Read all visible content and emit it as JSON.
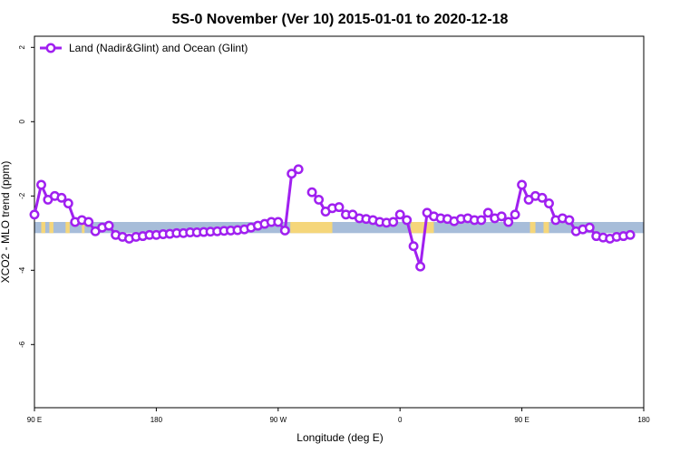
{
  "chart_data": {
    "type": "line",
    "title": "5S-0 November (Ver 10)   2015-01-01 to 2020-12-18",
    "xlabel": "Longitude (deg E)",
    "ylabel": "XCO2 - MLO trend (ppm)",
    "x_ticks": [
      "90 E",
      "180",
      "90 W",
      "0",
      "90 E",
      "180"
    ],
    "y_ticks": [
      "2",
      "0",
      "-2",
      "-4",
      "-6"
    ],
    "ylim": [
      -7.7,
      2.3
    ],
    "grid": false,
    "legend_position": "top-left",
    "series": [
      {
        "name": "Land (Nadir&Glint) and Ocean (Glint)",
        "color": "#a020f0",
        "points": [
          [
            90,
            -2.5
          ],
          [
            95,
            -1.7
          ],
          [
            100,
            -2.1
          ],
          [
            105,
            -2.0
          ],
          [
            110,
            -2.05
          ],
          [
            115,
            -2.2
          ],
          [
            120,
            -2.7
          ],
          [
            125,
            -2.65
          ],
          [
            130,
            -2.7
          ],
          [
            135,
            -2.95
          ],
          [
            140,
            -2.85
          ],
          [
            145,
            -2.8
          ],
          [
            150,
            -3.05
          ],
          [
            155,
            -3.1
          ],
          [
            160,
            -3.15
          ],
          [
            165,
            -3.1
          ],
          [
            170,
            -3.08
          ],
          [
            175,
            -3.05
          ],
          [
            180,
            -3.05
          ],
          [
            185,
            -3.03
          ],
          [
            190,
            -3.02
          ],
          [
            195,
            -3.0
          ],
          [
            200,
            -3.0
          ],
          [
            205,
            -2.98
          ],
          [
            210,
            -2.98
          ],
          [
            215,
            -2.97
          ],
          [
            220,
            -2.96
          ],
          [
            225,
            -2.95
          ],
          [
            230,
            -2.94
          ],
          [
            235,
            -2.93
          ],
          [
            240,
            -2.92
          ],
          [
            245,
            -2.9
          ],
          [
            250,
            -2.85
          ],
          [
            255,
            -2.8
          ],
          [
            260,
            -2.75
          ],
          [
            265,
            -2.7
          ],
          [
            270,
            -2.7
          ],
          [
            275,
            -2.93
          ],
          [
            280,
            -1.4
          ],
          [
            285,
            -1.28
          ],
          [
            null,
            null
          ],
          [
            295,
            -1.9
          ],
          [
            300,
            -2.1
          ],
          [
            305,
            -2.42
          ],
          [
            310,
            -2.33
          ],
          [
            315,
            -2.3
          ],
          [
            320,
            -2.5
          ],
          [
            325,
            -2.5
          ],
          [
            330,
            -2.6
          ],
          [
            335,
            -2.62
          ],
          [
            340,
            -2.65
          ],
          [
            345,
            -2.7
          ],
          [
            350,
            -2.72
          ],
          [
            355,
            -2.7
          ],
          [
            360,
            -2.5
          ],
          [
            365,
            -2.65
          ],
          [
            370,
            -3.35
          ],
          [
            375,
            -3.9
          ],
          [
            380,
            -2.45
          ],
          [
            385,
            -2.55
          ],
          [
            390,
            -2.6
          ],
          [
            395,
            -2.62
          ],
          [
            400,
            -2.68
          ],
          [
            405,
            -2.62
          ],
          [
            410,
            -2.6
          ],
          [
            415,
            -2.65
          ],
          [
            420,
            -2.65
          ],
          [
            425,
            -2.45
          ],
          [
            430,
            -2.6
          ],
          [
            435,
            -2.55
          ],
          [
            440,
            -2.7
          ],
          [
            445,
            -2.5
          ],
          [
            450,
            -1.7
          ],
          [
            455,
            -2.1
          ],
          [
            460,
            -2.0
          ],
          [
            465,
            -2.05
          ],
          [
            470,
            -2.2
          ],
          [
            475,
            -2.65
          ],
          [
            480,
            -2.6
          ],
          [
            485,
            -2.65
          ],
          [
            490,
            -2.95
          ],
          [
            495,
            -2.9
          ],
          [
            500,
            -2.85
          ],
          [
            505,
            -3.08
          ],
          [
            510,
            -3.12
          ],
          [
            515,
            -3.15
          ],
          [
            520,
            -3.1
          ],
          [
            525,
            -3.08
          ],
          [
            530,
            -3.05
          ]
        ]
      }
    ],
    "background_band": {
      "y_range": [
        -2.7,
        -3.0
      ],
      "ocean_color": "#a7bdd9",
      "land_color": "#f5d67a",
      "land_ranges": [
        [
          95,
          98
        ],
        [
          101,
          104
        ],
        [
          113,
          116
        ],
        [
          125,
          127
        ],
        [
          279,
          310
        ],
        [
          368,
          385
        ],
        [
          456,
          460
        ],
        [
          466,
          470
        ]
      ]
    }
  }
}
